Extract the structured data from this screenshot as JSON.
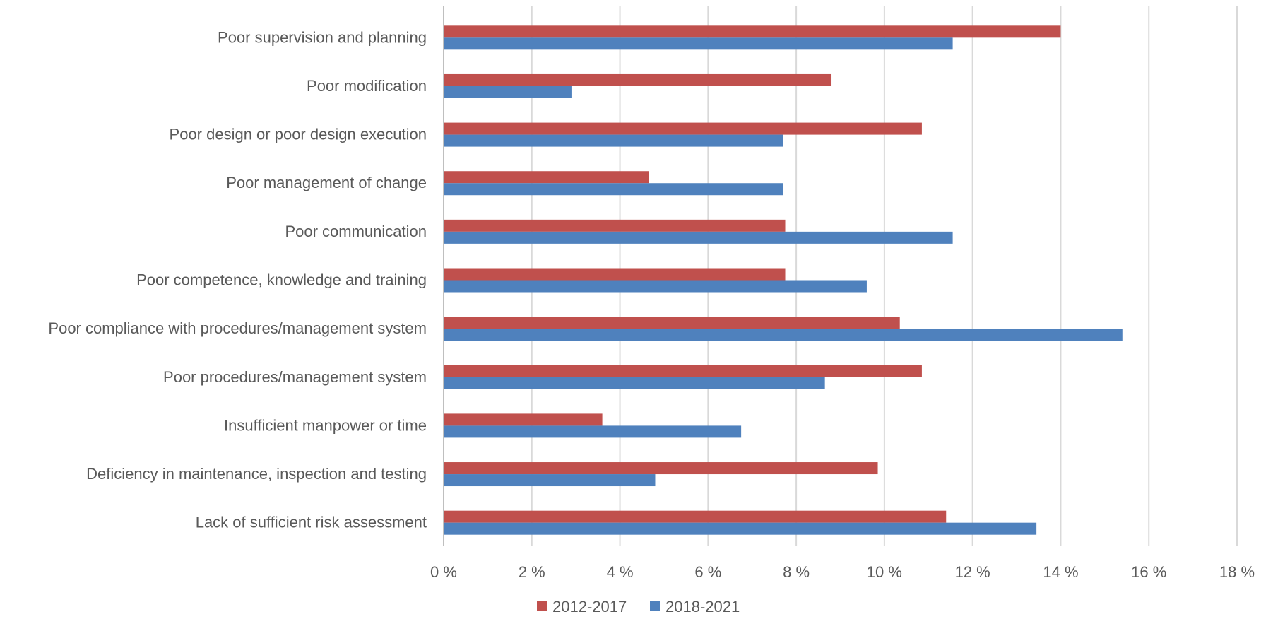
{
  "chart_data": {
    "type": "bar",
    "orientation": "horizontal",
    "categories": [
      "Poor supervision and planning",
      "Poor modification",
      "Poor design or poor design execution",
      "Poor management of change",
      "Poor communication",
      "Poor competence, knowledge and training",
      "Poor compliance with procedures/management system",
      "Poor procedures/management system",
      "Insufficient manpower or time",
      "Deficiency in maintenance, inspection and testing",
      "Lack of sufficient risk assessment"
    ],
    "series": [
      {
        "name": "2012-2017",
        "color": "#C0504D",
        "values": [
          14.0,
          8.8,
          10.85,
          4.65,
          7.75,
          7.75,
          10.35,
          10.85,
          3.6,
          9.85,
          11.4
        ]
      },
      {
        "name": "2018-2021",
        "color": "#4F81BD",
        "values": [
          11.55,
          2.9,
          7.7,
          7.7,
          11.55,
          9.6,
          15.4,
          8.65,
          6.75,
          4.8,
          13.45
        ]
      }
    ],
    "xlim": [
      0,
      18
    ],
    "ticks": [
      "0 %",
      "2 %",
      "4 %",
      "6 %",
      "8 %",
      "10 %",
      "12 %",
      "14 %",
      "16 %",
      "18 %"
    ],
    "grid": true,
    "legend_position": "bottom"
  }
}
